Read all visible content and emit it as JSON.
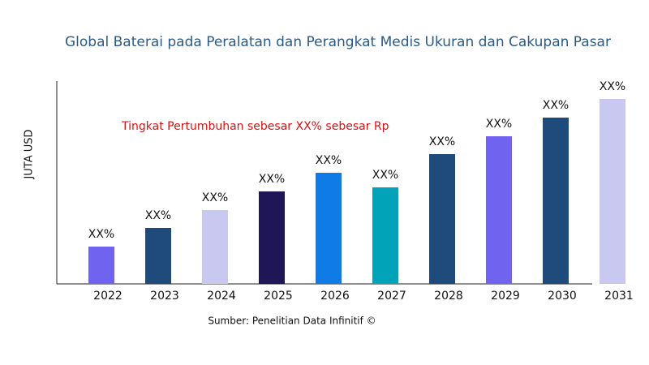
{
  "chart_data": {
    "type": "bar",
    "title": "Global Baterai pada Peralatan dan Perangkat Medis Ukuran dan Cakupan Pasar",
    "annotation": "Tingkat Pertumbuhan sebesar XX% sebesar Rp",
    "y_label": "JUTA USD",
    "source": "Sumber: Penelitian Data Infinitif ©",
    "categories": [
      "2022",
      "2023",
      "2024",
      "2025",
      "2026",
      "2027",
      "2028",
      "2029",
      "2030",
      "2031"
    ],
    "values": [
      46,
      69,
      91,
      114,
      137,
      119,
      160,
      182,
      205,
      228
    ],
    "value_labels": [
      "XX%",
      "XX%",
      "XX%",
      "XX%",
      "XX%",
      "XX%",
      "XX%",
      "XX%",
      "XX%",
      "XX%"
    ],
    "colors": [
      "#7063f0",
      "#1f4a7c",
      "#c8c8f0",
      "#1e1656",
      "#0f7be6",
      "#00a3b8",
      "#1f4a7c",
      "#7063f0",
      "#1f4a7c",
      "#c8c8f0"
    ],
    "ylim": [
      0,
      250
    ]
  }
}
